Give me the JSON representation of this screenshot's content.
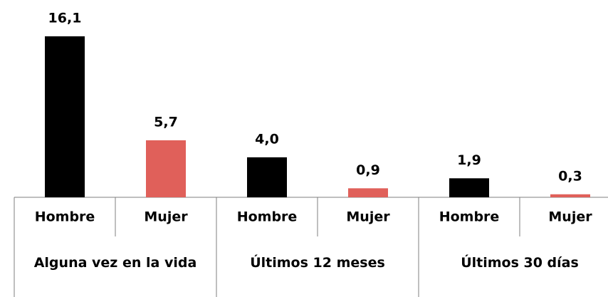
{
  "chart_data": {
    "type": "bar",
    "colors": [
      "#000000",
      "#e0605a"
    ],
    "groups": [
      {
        "name": "Alguna vez en la vida",
        "categories": [
          "Hombre",
          "Mujer"
        ],
        "values": [
          16.1,
          5.7
        ],
        "value_labels": [
          "16,1",
          "5,7"
        ]
      },
      {
        "name": "Últimos 12 meses",
        "categories": [
          "Hombre",
          "Mujer"
        ],
        "values": [
          4.0,
          0.9
        ],
        "value_labels": [
          "4,0",
          "0,9"
        ]
      },
      {
        "name": "Últimos 30 días",
        "categories": [
          "Hombre",
          "Mujer"
        ],
        "values": [
          1.9,
          0.3
        ],
        "value_labels": [
          "1,9",
          "0,3"
        ]
      }
    ]
  }
}
